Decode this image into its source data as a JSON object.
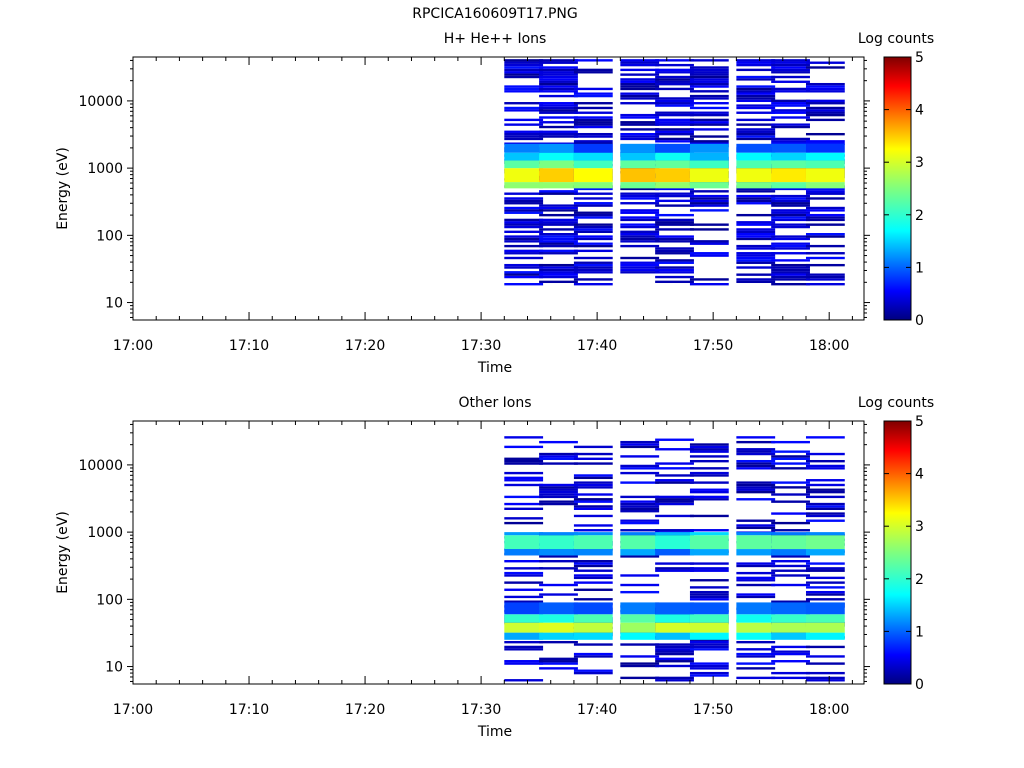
{
  "figure": {
    "title": "RPCICA160609T17.PNG"
  },
  "chart_data": [
    {
      "type": "heatmap",
      "title": "H+ He++ Ions",
      "xlabel": "Time",
      "ylabel": "Energy (eV)",
      "x_ticks": [
        "17:00",
        "17:10",
        "17:20",
        "17:30",
        "17:40",
        "17:50",
        "18:00"
      ],
      "y_ticks": [
        "10",
        "100",
        "1000",
        "10000"
      ],
      "y_scale": "log",
      "x_range": [
        "17:00",
        "18:03"
      ],
      "y_range": [
        5.5,
        45000
      ],
      "colorbar": {
        "label": "Log counts",
        "ticks": [
          "0",
          "1",
          "2",
          "3",
          "4",
          "5"
        ],
        "range": [
          0,
          5
        ]
      },
      "time_bins": [
        "17:32",
        "17:35",
        "17:38",
        "17:42",
        "17:45",
        "17:48",
        "17:52",
        "17:55",
        "17:58"
      ],
      "bands": [
        {
          "emin": 500,
          "emax": 620,
          "level": 2.5
        },
        {
          "emin": 620,
          "emax": 1000,
          "level": 3.3
        },
        {
          "emin": 1000,
          "emax": 1300,
          "level": 2.3
        },
        {
          "emin": 1300,
          "emax": 1700,
          "level": 1.6
        },
        {
          "emin": 1700,
          "emax": 2300,
          "level": 1.0
        }
      ],
      "sparse": {
        "emin": 18,
        "emax": 40000,
        "prob": 0.55,
        "seed": 7
      }
    },
    {
      "type": "heatmap",
      "title": "Other Ions",
      "xlabel": "Time",
      "ylabel": "Energy (eV)",
      "x_ticks": [
        "17:00",
        "17:10",
        "17:20",
        "17:30",
        "17:40",
        "17:50",
        "18:00"
      ],
      "y_ticks": [
        "10",
        "100",
        "1000",
        "10000"
      ],
      "y_scale": "log",
      "x_range": [
        "17:00",
        "18:03"
      ],
      "y_range": [
        5.5,
        45000
      ],
      "colorbar": {
        "label": "Log counts",
        "ticks": [
          "0",
          "1",
          "2",
          "3",
          "4",
          "5"
        ],
        "range": [
          0,
          5
        ]
      },
      "time_bins": [
        "17:32",
        "17:35",
        "17:38",
        "17:42",
        "17:45",
        "17:48",
        "17:52",
        "17:55",
        "17:58"
      ],
      "bands": [
        {
          "emin": 450,
          "emax": 560,
          "level": 1.2
        },
        {
          "emin": 560,
          "emax": 900,
          "level": 2.2
        },
        {
          "emin": 900,
          "emax": 1000,
          "level": 1.3
        },
        {
          "emin": 25,
          "emax": 32,
          "level": 1.5
        },
        {
          "emin": 32,
          "emax": 45,
          "level": 2.9
        },
        {
          "emin": 45,
          "emax": 60,
          "level": 2.0
        },
        {
          "emin": 60,
          "emax": 90,
          "level": 1.0
        }
      ],
      "sparse": {
        "emin": 6,
        "emax": 26000,
        "prob": 0.35,
        "seed": 3
      }
    }
  ]
}
